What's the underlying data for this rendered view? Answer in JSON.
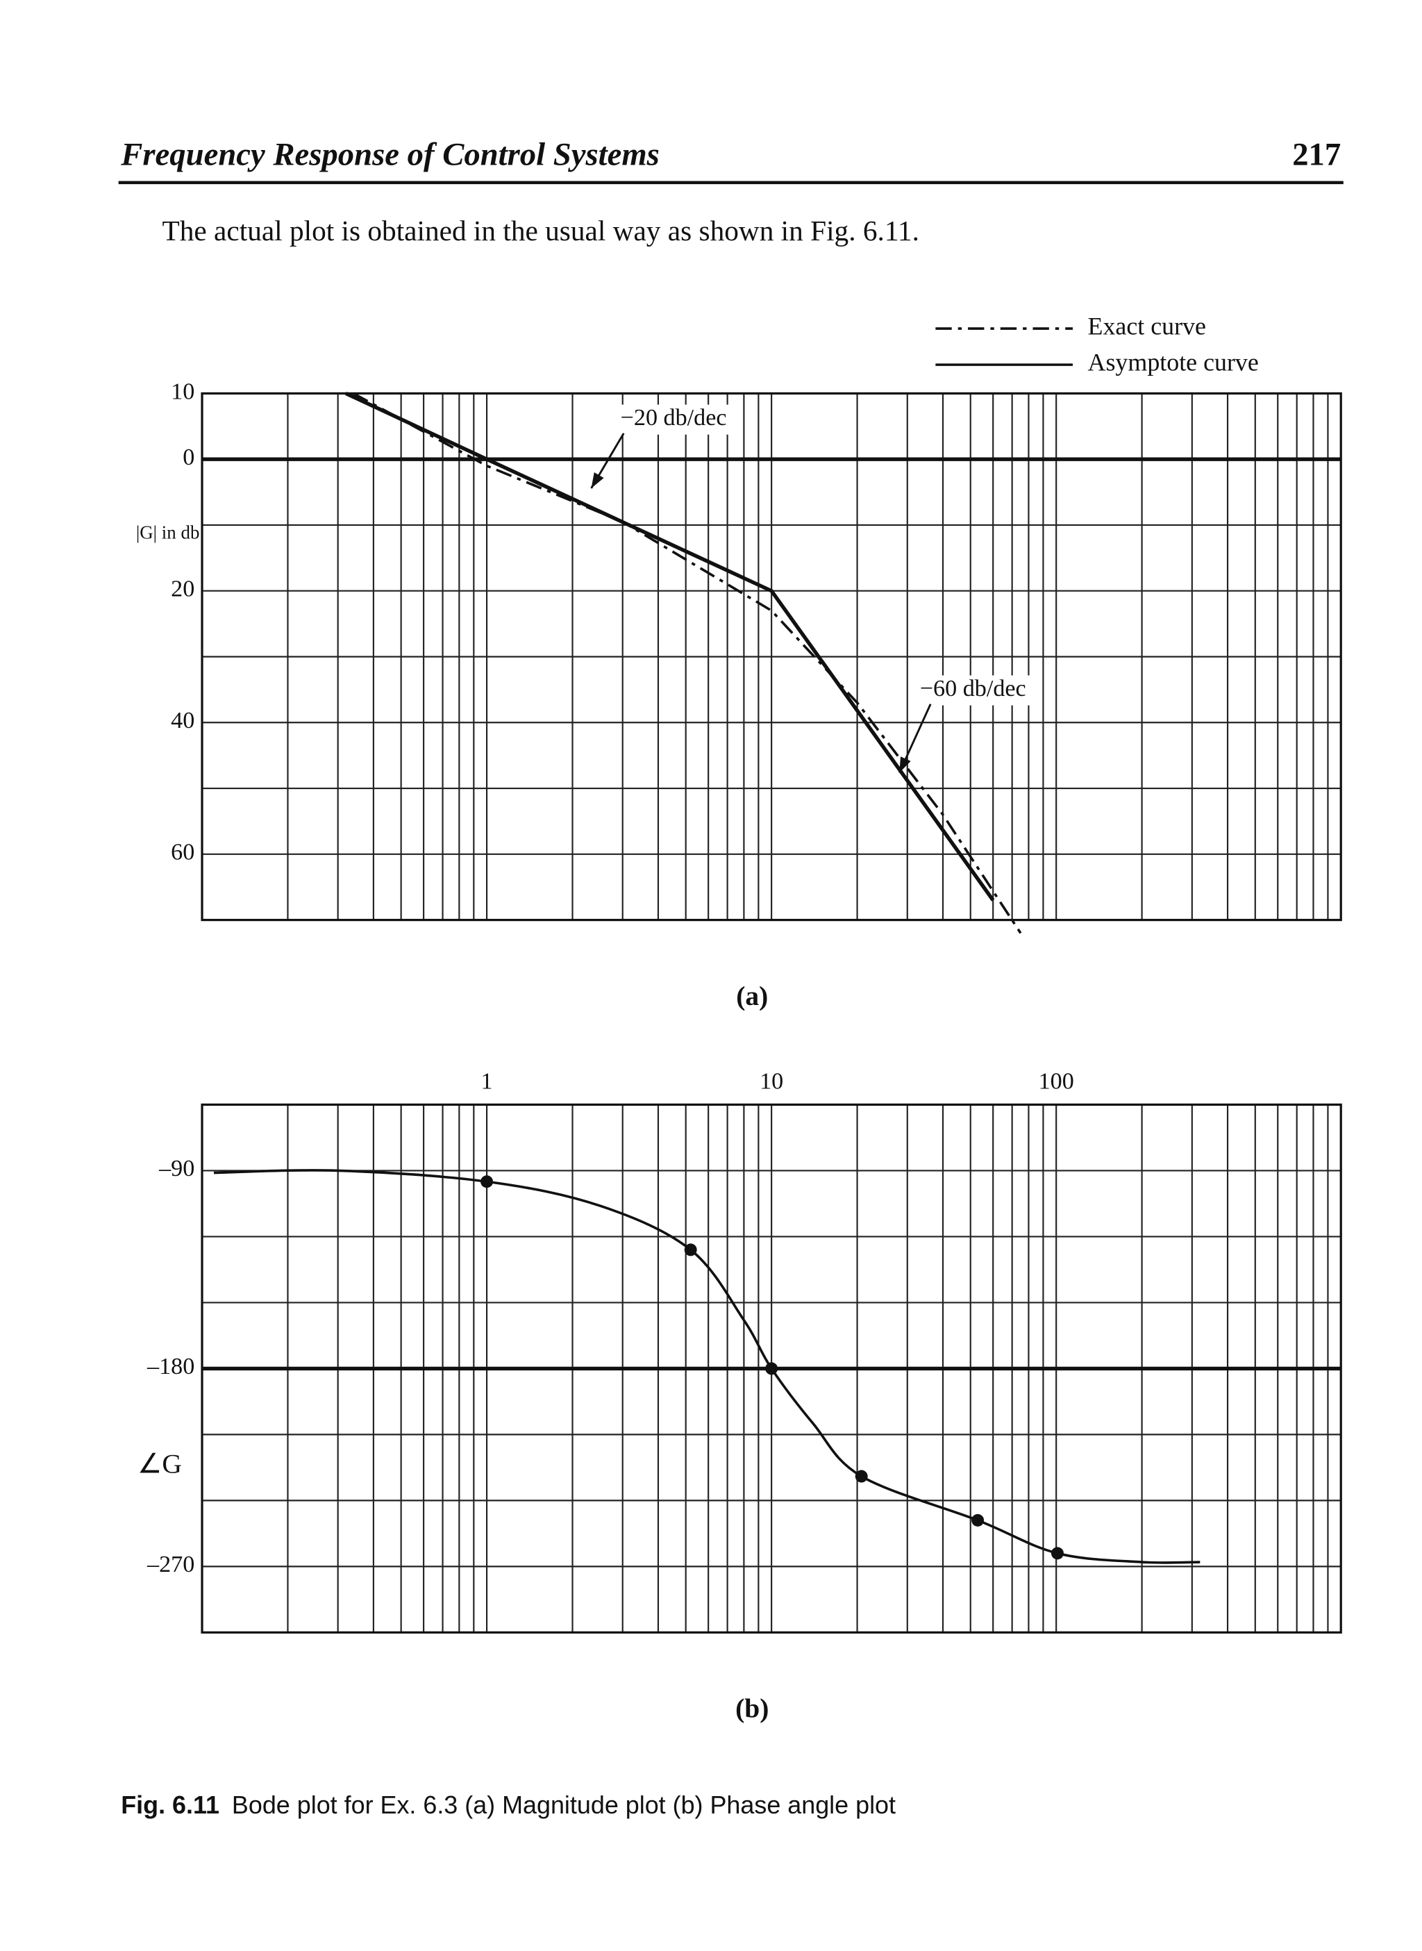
{
  "header": {
    "title": "Frequency Response of Control Systems",
    "page": "217"
  },
  "intro": "The actual plot is obtained in the usual way as shown in Fig. 6.11.",
  "chart_data": [
    {
      "type": "line",
      "label": "(a)",
      "y_label": "|G| in db",
      "log_x": true,
      "xlim": [
        0.1,
        1000
      ],
      "xgrid": [
        0.1,
        0.2,
        0.3,
        0.4,
        0.5,
        0.6,
        0.7,
        0.8,
        0.9,
        1,
        2,
        3,
        4,
        5,
        6,
        7,
        8,
        9,
        10,
        20,
        30,
        40,
        50,
        60,
        70,
        80,
        90,
        100,
        200,
        300,
        400,
        500,
        600,
        700,
        800,
        900,
        1000
      ],
      "ylim": [
        -70,
        10
      ],
      "yticks": [
        10,
        0,
        {
          "value": -20,
          "label": "20"
        },
        {
          "value": -40,
          "label": "40"
        },
        {
          "value": -60,
          "label": "60"
        }
      ],
      "ygrid": [
        10,
        0,
        -10,
        -20,
        -30,
        -40,
        -50,
        -60,
        -70
      ],
      "ref_line": 0,
      "legend": "top-right",
      "series": [
        {
          "name": "Exact curve",
          "style": "dashdot",
          "color": "#111",
          "x": [
            0.34,
            1,
            3,
            10,
            20,
            40,
            75
          ],
          "values": [
            10,
            -1,
            -9.5,
            -23,
            -37,
            -54,
            -72
          ]
        },
        {
          "name": "Asymptote curve",
          "style": "solid",
          "color": "#111",
          "x": [
            0.32,
            1,
            10,
            60
          ],
          "values": [
            10,
            0,
            -20,
            -67
          ]
        }
      ],
      "annotations": [
        "−20 db/dec",
        "−60 db/dec"
      ]
    },
    {
      "type": "line",
      "label": "(b)",
      "y_label": "∠G",
      "log_x": true,
      "xlim": [
        0.1,
        1000
      ],
      "xticks": [
        1,
        10,
        100
      ],
      "xgrid": [
        0.1,
        0.2,
        0.3,
        0.4,
        0.5,
        0.6,
        0.7,
        0.8,
        0.9,
        1,
        2,
        3,
        4,
        5,
        6,
        7,
        8,
        9,
        10,
        20,
        30,
        40,
        50,
        60,
        70,
        80,
        90,
        100,
        200,
        300,
        400,
        500,
        600,
        700,
        800,
        900,
        1000
      ],
      "ylim": [
        -300,
        -60
      ],
      "yticks": [
        {
          "value": -90,
          "label": "–90"
        },
        {
          "value": -180,
          "label": "–180"
        },
        {
          "value": -270,
          "label": "–270"
        }
      ],
      "ygrid": [
        -60,
        -90,
        -120,
        -150,
        -180,
        -210,
        -240,
        -270,
        -300
      ],
      "ref_line": -180,
      "series": [
        {
          "style": "smooth",
          "color": "#111",
          "x": [
            0.11,
            0.3,
            1,
            2.5,
            5.2,
            8,
            10,
            14,
            20.7,
            53,
            101,
            200,
            320
          ],
          "values": [
            -91,
            -90,
            -95,
            -106,
            -126,
            -158,
            -180,
            -205,
            -229,
            -249,
            -264,
            -268,
            -268
          ]
        }
      ],
      "points": {
        "x": [
          1,
          5.2,
          10,
          20.7,
          53,
          101
        ],
        "values": [
          -95,
          -126,
          -180,
          -229,
          -249,
          -264
        ]
      }
    }
  ],
  "caption": {
    "label": "Fig. 6.11",
    "text": "Bode plot for Ex. 6.3  (a) Magnitude plot  (b) Phase angle plot"
  }
}
